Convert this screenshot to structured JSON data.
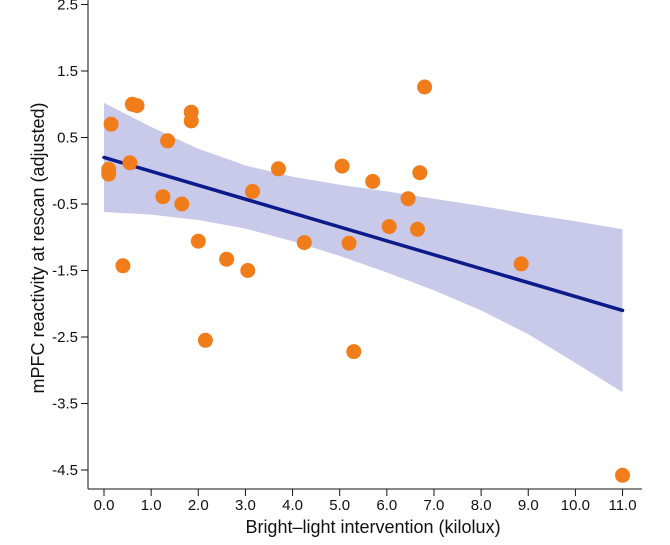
{
  "chart_data": {
    "type": "scatter",
    "title": "",
    "xlabel": "Bright–light intervention (kilolux)",
    "ylabel": "mPFC reactivity at rescan (adjusted)",
    "xlim": [
      -0.35,
      11.2
    ],
    "ylim": [
      -4.85,
      2.85
    ],
    "x_ticks": [
      0,
      1,
      2,
      3,
      4,
      5,
      6,
      7,
      8,
      9,
      10,
      11
    ],
    "x_tick_labels": [
      "0.0",
      "1.0",
      "2.0",
      "3.0",
      "4.0",
      "5.0",
      "6.0",
      "7.0",
      "8.0",
      "9.0",
      "10.0",
      "11.0"
    ],
    "y_ticks": [
      2.5,
      1.5,
      0.5,
      -0.5,
      -1.5,
      -2.5,
      -3.5,
      -4.5
    ],
    "y_tick_labels": [
      "2.5",
      "1.5",
      "0.5",
      "-0.5",
      "-1.5",
      "-2.5",
      "-3.5",
      "-4.5"
    ],
    "grid": false,
    "points": [
      {
        "x": 0.1,
        "y": -0.05
      },
      {
        "x": 0.1,
        "y": 0.02
      },
      {
        "x": 0.15,
        "y": 0.7
      },
      {
        "x": 0.4,
        "y": -1.43
      },
      {
        "x": 0.55,
        "y": 0.12
      },
      {
        "x": 0.6,
        "y": 1.0
      },
      {
        "x": 0.7,
        "y": 0.98
      },
      {
        "x": 1.25,
        "y": -0.39
      },
      {
        "x": 1.35,
        "y": 0.45
      },
      {
        "x": 1.65,
        "y": -0.5
      },
      {
        "x": 1.85,
        "y": 0.88
      },
      {
        "x": 1.85,
        "y": 0.75
      },
      {
        "x": 2.0,
        "y": -1.06
      },
      {
        "x": 2.15,
        "y": -2.55
      },
      {
        "x": 2.6,
        "y": -1.33
      },
      {
        "x": 3.05,
        "y": -1.5
      },
      {
        "x": 3.15,
        "y": -0.31
      },
      {
        "x": 3.7,
        "y": 0.03
      },
      {
        "x": 4.25,
        "y": -1.08
      },
      {
        "x": 5.05,
        "y": 0.07
      },
      {
        "x": 5.2,
        "y": -1.09
      },
      {
        "x": 5.3,
        "y": -2.72
      },
      {
        "x": 5.7,
        "y": -0.16
      },
      {
        "x": 6.05,
        "y": -0.84
      },
      {
        "x": 6.45,
        "y": -0.42
      },
      {
        "x": 6.65,
        "y": -0.88
      },
      {
        "x": 6.7,
        "y": -0.03
      },
      {
        "x": 6.8,
        "y": 1.26
      },
      {
        "x": 8.85,
        "y": -1.4
      },
      {
        "x": 11.0,
        "y": -4.58
      }
    ],
    "fit_line": {
      "x": [
        0.0,
        11.0
      ],
      "y": [
        0.2,
        -2.1
      ]
    },
    "confidence_band": {
      "x": [
        0.0,
        1.0,
        2.0,
        3.0,
        4.0,
        5.0,
        6.0,
        7.0,
        8.0,
        9.0,
        10.0,
        11.0
      ],
      "upper": [
        1.02,
        0.66,
        0.33,
        0.08,
        -0.09,
        -0.21,
        -0.31,
        -0.42,
        -0.53,
        -0.65,
        -0.76,
        -0.88
      ],
      "lower": [
        -0.62,
        -0.66,
        -0.74,
        -0.87,
        -1.06,
        -1.28,
        -1.53,
        -1.8,
        -2.1,
        -2.46,
        -2.89,
        -3.33
      ]
    },
    "colors": {
      "points": "#f07d1a",
      "fit_line": "#0c1a8a",
      "confidence_band": "#c9c9ea",
      "axis": "#111111"
    }
  }
}
